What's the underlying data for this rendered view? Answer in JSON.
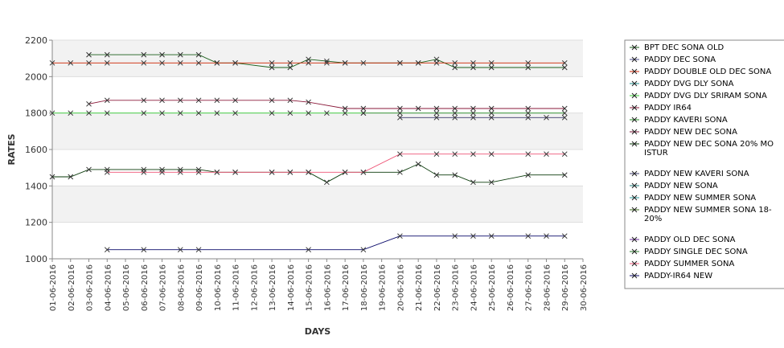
{
  "chart_data": {
    "type": "line",
    "xlabel": "DAYS",
    "ylabel": "RATES",
    "ylim": [
      1000,
      2200
    ],
    "y_ticks": [
      1000,
      1200,
      1400,
      1600,
      1800,
      2000,
      2200
    ],
    "grid": "horizontal bands",
    "legend_position": "right",
    "categories": [
      "01-06-2016",
      "02-06-2016",
      "03-06-2016",
      "04-06-2016",
      "05-06-2016",
      "06-06-2016",
      "07-06-2016",
      "08-06-2016",
      "09-06-2016",
      "10-06-2016",
      "11-06-2016",
      "12-06-2016",
      "13-06-2016",
      "14-06-2016",
      "15-06-2016",
      "16-06-2016",
      "17-06-2016",
      "18-06-2016",
      "19-06-2016",
      "20-06-2016",
      "21-06-2016",
      "22-06-2016",
      "23-06-2016",
      "24-06-2016",
      "25-06-2016",
      "26-06-2016",
      "27-06-2016",
      "28-06-2016",
      "29-06-2016",
      "30-06-2016"
    ],
    "series": [
      {
        "name": "BPT DEC SONA OLD",
        "color": "#1a5e1a",
        "points": [
          [
            2,
            2120
          ],
          [
            3,
            2120
          ],
          [
            5,
            2120
          ],
          [
            6,
            2120
          ],
          [
            7,
            2120
          ],
          [
            8,
            2120
          ],
          [
            9,
            2075
          ],
          [
            10,
            2075
          ],
          [
            12,
            2050
          ],
          [
            13,
            2050
          ],
          [
            14,
            2095
          ],
          [
            15,
            2085
          ],
          [
            16,
            2075
          ],
          [
            19,
            2075
          ],
          [
            20,
            2075
          ],
          [
            21,
            2095
          ],
          [
            22,
            2050
          ],
          [
            23,
            2050
          ],
          [
            24,
            2050
          ],
          [
            26,
            2050
          ],
          [
            28,
            2050
          ]
        ]
      },
      {
        "name": "PADDY DEC SONA",
        "color": "#4a4a8a",
        "points": []
      },
      {
        "name": "PADDY DOUBLE OLD DEC SONA",
        "color": "#cc2200",
        "points": [
          [
            0,
            2075
          ],
          [
            1,
            2075
          ],
          [
            2,
            2075
          ],
          [
            3,
            2075
          ],
          [
            5,
            2075
          ],
          [
            6,
            2075
          ],
          [
            7,
            2075
          ],
          [
            8,
            2075
          ],
          [
            9,
            2075
          ],
          [
            10,
            2075
          ],
          [
            12,
            2075
          ],
          [
            13,
            2075
          ],
          [
            14,
            2075
          ],
          [
            15,
            2075
          ],
          [
            16,
            2075
          ],
          [
            17,
            2075
          ],
          [
            19,
            2075
          ],
          [
            20,
            2075
          ],
          [
            21,
            2075
          ],
          [
            22,
            2075
          ],
          [
            23,
            2075
          ],
          [
            24,
            2075
          ],
          [
            26,
            2075
          ],
          [
            28,
            2075
          ]
        ]
      },
      {
        "name": "PADDY DVG DLY SONA",
        "color": "#1a8a8a",
        "points": []
      },
      {
        "name": "PADDY DVG DLY SRIRAM SONA",
        "color": "#33cc33",
        "points": [
          [
            0,
            1800
          ],
          [
            1,
            1800
          ],
          [
            2,
            1800
          ],
          [
            3,
            1800
          ],
          [
            5,
            1800
          ],
          [
            6,
            1800
          ],
          [
            7,
            1800
          ],
          [
            8,
            1800
          ],
          [
            9,
            1800
          ],
          [
            10,
            1800
          ],
          [
            12,
            1800
          ],
          [
            13,
            1800
          ],
          [
            14,
            1800
          ],
          [
            15,
            1800
          ],
          [
            16,
            1800
          ],
          [
            17,
            1800
          ]
        ]
      },
      {
        "name": "PADDY IR64",
        "color": "#8a1a3a",
        "points": [
          [
            2,
            1850
          ],
          [
            3,
            1870
          ],
          [
            5,
            1870
          ],
          [
            6,
            1870
          ],
          [
            7,
            1870
          ],
          [
            8,
            1870
          ],
          [
            9,
            1870
          ],
          [
            10,
            1870
          ],
          [
            12,
            1870
          ],
          [
            13,
            1870
          ],
          [
            14,
            1860
          ],
          [
            16,
            1825
          ],
          [
            17,
            1825
          ],
          [
            19,
            1825
          ],
          [
            20,
            1825
          ],
          [
            21,
            1825
          ],
          [
            22,
            1825
          ],
          [
            23,
            1825
          ],
          [
            24,
            1825
          ],
          [
            26,
            1825
          ],
          [
            28,
            1825
          ]
        ]
      },
      {
        "name": "PADDY KAVERI SONA",
        "color": "#228b22",
        "points": [
          [
            17,
            1800
          ],
          [
            19,
            1800
          ],
          [
            21,
            1800
          ],
          [
            22,
            1800
          ],
          [
            23,
            1800
          ],
          [
            24,
            1800
          ],
          [
            26,
            1800
          ],
          [
            28,
            1800
          ]
        ]
      },
      {
        "name": "PADDY NEW DEC SONA",
        "color": "#7a1a3a",
        "points": []
      },
      {
        "name": "PADDY NEW DEC SONA 20% MOISTUR",
        "label_lines": [
          "PADDY NEW DEC SONA 20% MO",
          "ISTUR"
        ],
        "color": "#0a3a0a",
        "points": [
          [
            0,
            1450
          ],
          [
            1,
            1450
          ],
          [
            2,
            1490
          ],
          [
            3,
            1490
          ],
          [
            5,
            1490
          ],
          [
            6,
            1490
          ],
          [
            7,
            1490
          ],
          [
            8,
            1490
          ],
          [
            9,
            1475
          ],
          [
            10,
            1475
          ],
          [
            12,
            1475
          ],
          [
            13,
            1475
          ],
          [
            14,
            1475
          ],
          [
            15,
            1420
          ],
          [
            16,
            1475
          ],
          [
            17,
            1475
          ],
          [
            19,
            1475
          ],
          [
            20,
            1520
          ],
          [
            21,
            1460
          ],
          [
            22,
            1460
          ],
          [
            23,
            1420
          ],
          [
            24,
            1420
          ],
          [
            26,
            1460
          ],
          [
            28,
            1460
          ]
        ]
      },
      {
        "name": "PADDY NEW KAVERI SONA",
        "color": "#3a3a6a",
        "points": [
          [
            19,
            1775
          ],
          [
            21,
            1775
          ],
          [
            22,
            1775
          ],
          [
            23,
            1775
          ],
          [
            24,
            1775
          ],
          [
            26,
            1775
          ],
          [
            27,
            1775
          ],
          [
            28,
            1775
          ]
        ]
      },
      {
        "name": "PADDY NEW SONA",
        "color": "#1a7a7a",
        "points": []
      },
      {
        "name": "PADDY NEW SUMMER SONA",
        "color": "#2a9a9a",
        "points": []
      },
      {
        "name": "PADDY NEW SUMMER SONA 18-20%",
        "label_lines": [
          "PADDY NEW SUMMER SONA 18-",
          "20%"
        ],
        "color": "#3a6a1a",
        "points": []
      },
      {
        "name": "PADDY OLD DEC SONA",
        "color": "#6a2a9a",
        "points": []
      },
      {
        "name": "PADDY SINGLE DEC SONA",
        "color": "#2a7a2a",
        "points": []
      },
      {
        "name": "PADDY SUMMER SONA",
        "color": "#ee5577",
        "points": [
          [
            3,
            1475
          ],
          [
            5,
            1475
          ],
          [
            6,
            1475
          ],
          [
            7,
            1475
          ],
          [
            8,
            1475
          ],
          [
            9,
            1475
          ],
          [
            10,
            1475
          ],
          [
            12,
            1475
          ],
          [
            13,
            1475
          ],
          [
            14,
            1475
          ],
          [
            16,
            1475
          ],
          [
            17,
            1475
          ],
          [
            19,
            1575
          ],
          [
            21,
            1575
          ],
          [
            22,
            1575
          ],
          [
            23,
            1575
          ],
          [
            24,
            1575
          ],
          [
            26,
            1575
          ],
          [
            27,
            1575
          ],
          [
            28,
            1575
          ]
        ]
      },
      {
        "name": "PADDY-IR64 NEW",
        "color": "#0a0a6a",
        "points": [
          [
            3,
            1050
          ],
          [
            5,
            1050
          ],
          [
            7,
            1050
          ],
          [
            8,
            1050
          ],
          [
            14,
            1050
          ],
          [
            17,
            1050
          ],
          [
            19,
            1125
          ],
          [
            22,
            1125
          ],
          [
            23,
            1125
          ],
          [
            24,
            1125
          ],
          [
            26,
            1125
          ],
          [
            27,
            1125
          ],
          [
            28,
            1125
          ]
        ]
      }
    ]
  }
}
